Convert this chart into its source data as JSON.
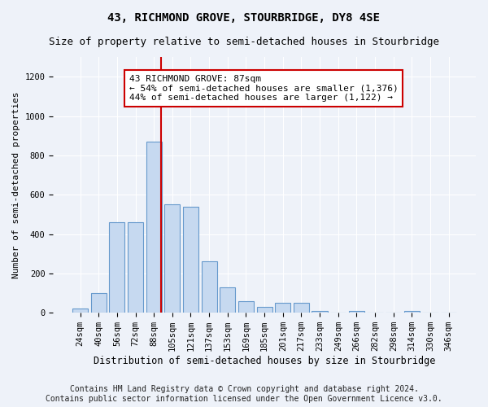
{
  "title": "43, RICHMOND GROVE, STOURBRIDGE, DY8 4SE",
  "subtitle": "Size of property relative to semi-detached houses in Stourbridge",
  "xlabel": "Distribution of semi-detached houses by size in Stourbridge",
  "ylabel": "Number of semi-detached properties",
  "footer_line1": "Contains HM Land Registry data © Crown copyright and database right 2024.",
  "footer_line2": "Contains public sector information licensed under the Open Government Licence v3.0.",
  "categories": [
    "24sqm",
    "40sqm",
    "56sqm",
    "72sqm",
    "88sqm",
    "105sqm",
    "121sqm",
    "137sqm",
    "153sqm",
    "169sqm",
    "185sqm",
    "201sqm",
    "217sqm",
    "233sqm",
    "249sqm",
    "266sqm",
    "282sqm",
    "298sqm",
    "314sqm",
    "330sqm",
    "346sqm"
  ],
  "values": [
    20,
    100,
    460,
    460,
    870,
    550,
    540,
    260,
    130,
    60,
    30,
    50,
    50,
    10,
    0,
    10,
    0,
    0,
    10,
    0,
    0
  ],
  "bar_color": "#c6d9f0",
  "bar_edge_color": "#6699cc",
  "vline_bin_index": 4,
  "vline_color": "#cc0000",
  "annotation_text": "43 RICHMOND GROVE: 87sqm\n← 54% of semi-detached houses are smaller (1,376)\n44% of semi-detached houses are larger (1,122) →",
  "annotation_box_facecolor": "#ffffff",
  "annotation_box_edgecolor": "#cc0000",
  "ylim": [
    0,
    1300
  ],
  "yticks": [
    0,
    200,
    400,
    600,
    800,
    1000,
    1200
  ],
  "background_color": "#eef2f9",
  "grid_color": "#ffffff",
  "title_fontsize": 10,
  "subtitle_fontsize": 9,
  "xlabel_fontsize": 8.5,
  "ylabel_fontsize": 8,
  "tick_fontsize": 7.5,
  "annotation_fontsize": 8,
  "footer_fontsize": 7
}
